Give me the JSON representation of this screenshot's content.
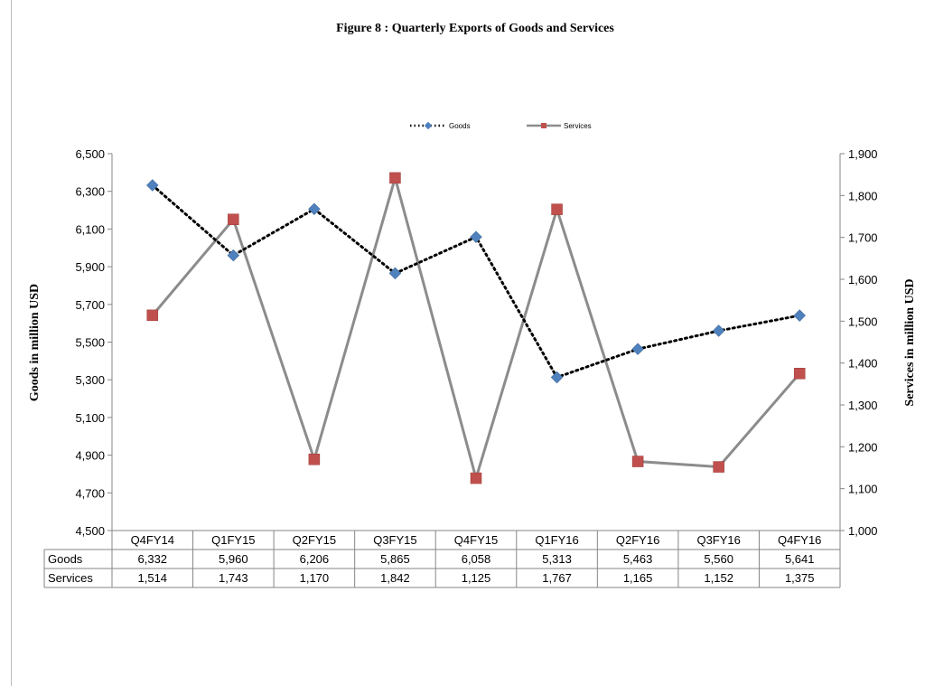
{
  "chart_data": {
    "type": "line",
    "title": "Figure  8 : Quarterly Exports of Goods and Services",
    "categories": [
      "Q4FY14",
      "Q1FY15",
      "Q2FY15",
      "Q3FY15",
      "Q4FY15",
      "Q1FY16",
      "Q2FY16",
      "Q3FY16",
      "Q4FY16"
    ],
    "series": [
      {
        "name": "Goods",
        "axis": "left",
        "values": [
          6332,
          5960,
          6206,
          5865,
          6058,
          5313,
          5463,
          5560,
          5641
        ],
        "color": "#4F81BD",
        "line_style": "dotted",
        "line_color": "#000000",
        "marker": "diamond"
      },
      {
        "name": "Services",
        "axis": "right",
        "values": [
          1514,
          1743,
          1170,
          1842,
          1125,
          1767,
          1165,
          1152,
          1375
        ],
        "color": "#C0504D",
        "line_style": "solid",
        "line_color": "#8c8c8c",
        "marker": "square"
      }
    ],
    "ylabel_left": "Goods in million USD",
    "ylabel_right": "Services in million  USD",
    "ylim_left": [
      4500,
      6500
    ],
    "yticks_left": [
      "4,500",
      "4,700",
      "4,900",
      "5,100",
      "5,300",
      "5,500",
      "5,700",
      "5,900",
      "6,100",
      "6,300",
      "6,500"
    ],
    "ylim_right": [
      1000,
      1900
    ],
    "yticks_right": [
      "1,000",
      "1,100",
      "1,200",
      "1,300",
      "1,400",
      "1,500",
      "1,600",
      "1,700",
      "1,800",
      "1,900"
    ],
    "legend_position": "top-center",
    "grid": false,
    "data_table": {
      "rows": [
        {
          "label": "Goods",
          "values": [
            "6,332",
            "5,960",
            "6,206",
            "5,865",
            "6,058",
            "5,313",
            "5,463",
            "5,560",
            "5,641"
          ]
        },
        {
          "label": "Services",
          "values": [
            "1,514",
            "1,743",
            "1,170",
            "1,842",
            "1,125",
            "1,767",
            "1,165",
            "1,152",
            "1,375"
          ]
        }
      ]
    }
  }
}
